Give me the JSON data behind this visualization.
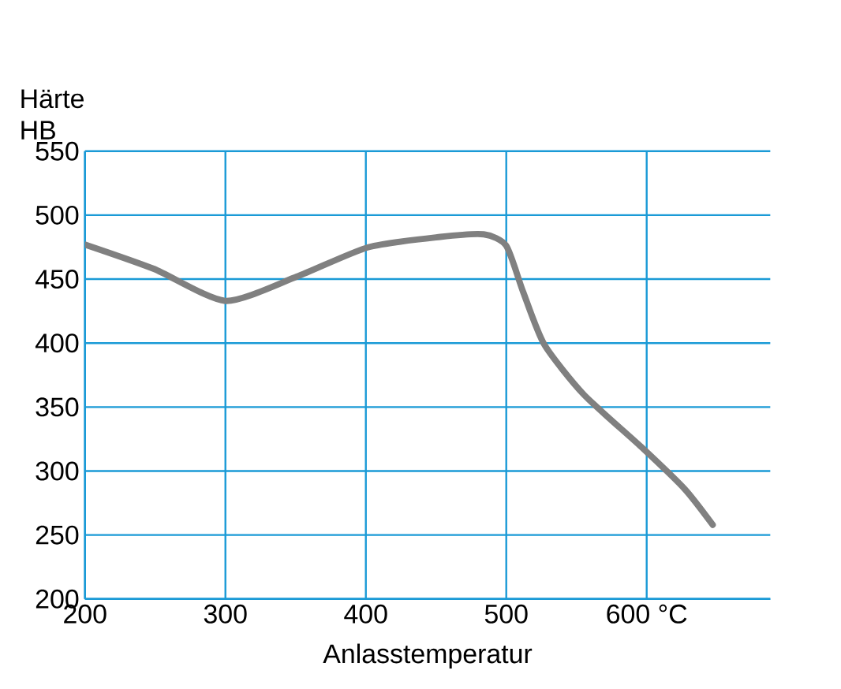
{
  "chart_data": {
    "type": "line",
    "xlabel": "Anlasstemperatur",
    "ylabel": "Härte HB",
    "x": [
      200,
      249,
      300,
      351,
      402,
      453,
      484,
      500,
      512,
      527,
      555,
      596,
      627,
      647
    ],
    "series": [
      {
        "color": "#808080",
        "values": [
          477,
          458,
          433,
          452,
          475,
          483,
          485,
          476,
          440,
          399,
          360,
          319,
          286,
          258
        ]
      }
    ],
    "xlim": [
      200,
      688
    ],
    "ylim": [
      200,
      550
    ],
    "xticks": [
      200,
      300,
      400,
      500,
      {
        "value": 600,
        "label": "600 °C"
      }
    ],
    "yticks": [
      200,
      250,
      300,
      350,
      400,
      450,
      500,
      550
    ],
    "grid": true
  }
}
